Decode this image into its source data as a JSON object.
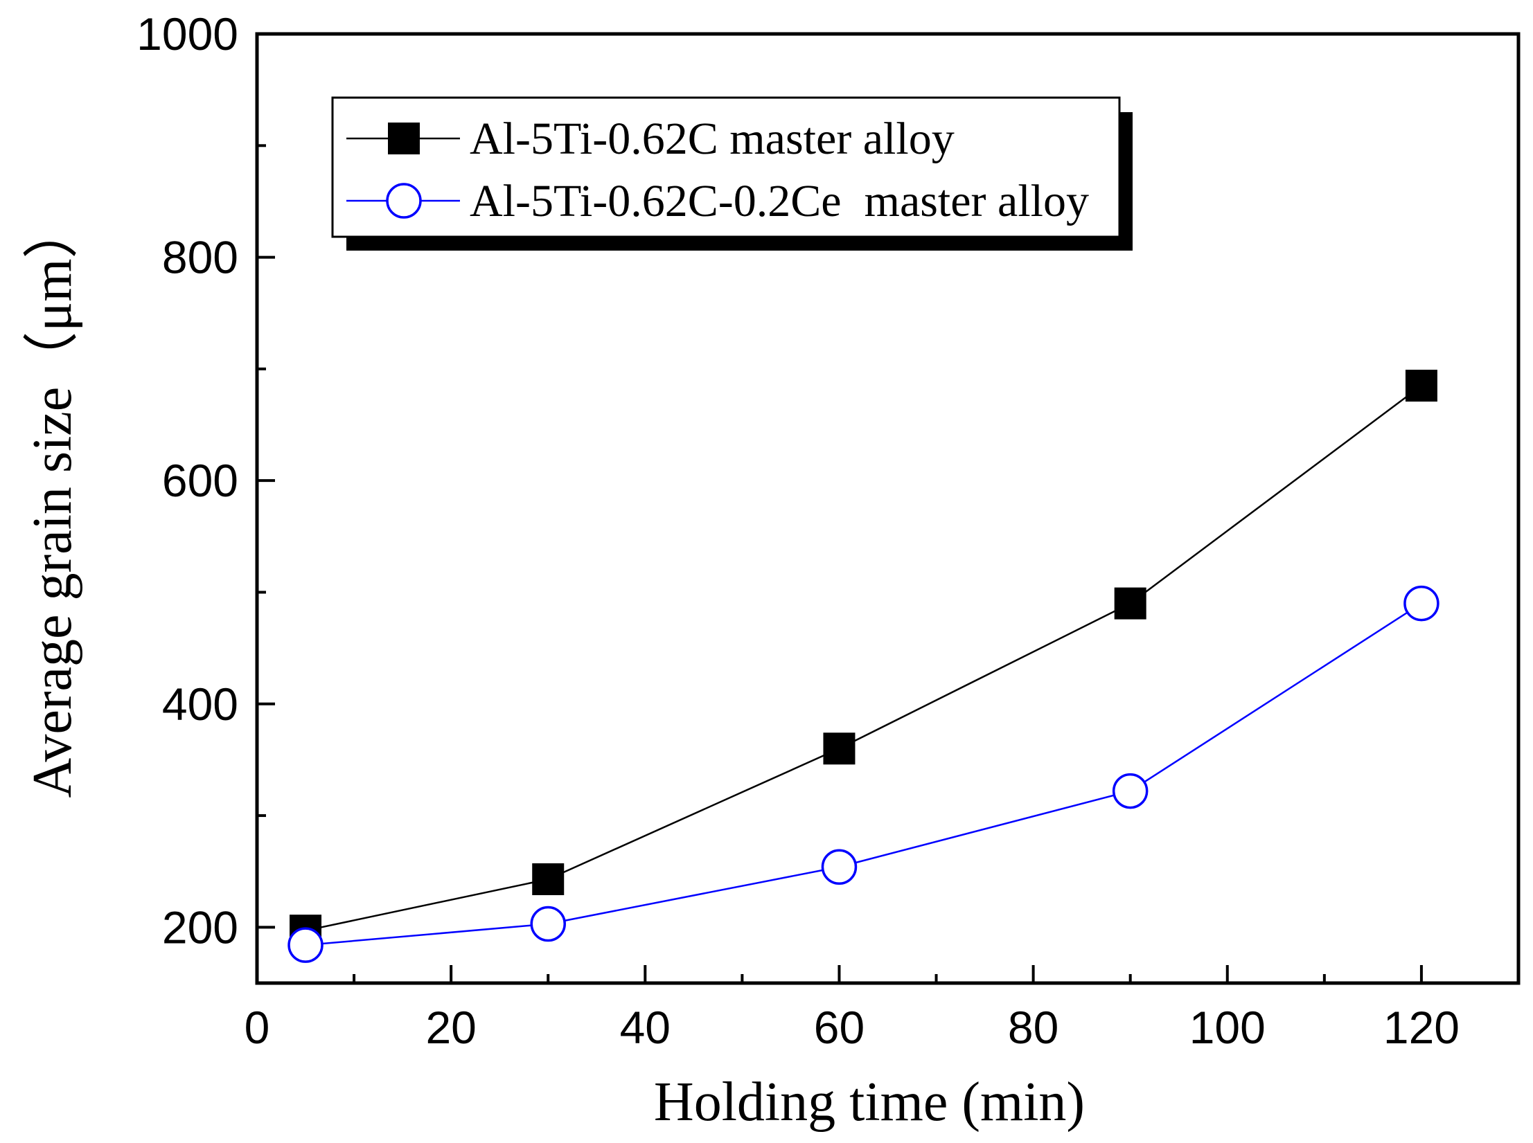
{
  "chart_data": {
    "type": "line",
    "xlabel": "Holding time (min)",
    "ylabel": "Average grain size（μm）",
    "xlim": [
      0,
      130
    ],
    "ylim": [
      150,
      1000
    ],
    "x_ticks": [
      0,
      20,
      40,
      60,
      80,
      100,
      120
    ],
    "x_minor_ticks": [
      10,
      30,
      50,
      70,
      90,
      110,
      130
    ],
    "y_ticks": [
      200,
      400,
      600,
      800,
      1000
    ],
    "y_minor_ticks": [
      300,
      500,
      700,
      900
    ],
    "grid": false,
    "legend_position": "top-left",
    "x": [
      5,
      30,
      60,
      90,
      120
    ],
    "series": [
      {
        "name": "Al-5Ti-0.62C master alloy",
        "color": "#000000",
        "marker": "filled-square",
        "values": [
          197,
          243,
          360,
          490,
          685
        ]
      },
      {
        "name": "Al-5Ti-0.62C-0.2Ce  master alloy",
        "color": "#0000ff",
        "marker": "open-circle",
        "values": [
          184,
          203,
          254,
          322,
          490
        ]
      }
    ]
  }
}
